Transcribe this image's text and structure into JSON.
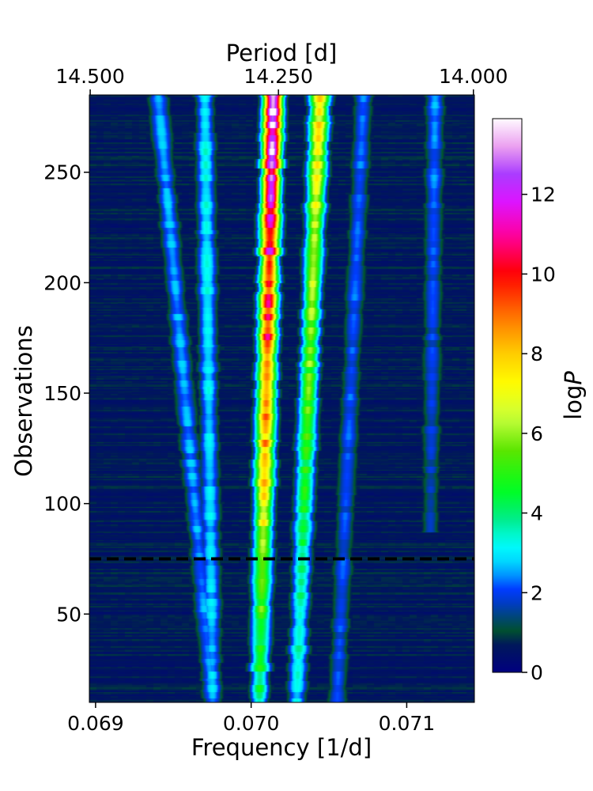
{
  "chart_data": {
    "type": "heatmap",
    "title": "",
    "xlabel": "Frequency [1/d]",
    "ylabel": "Observations",
    "x2label": "Period [d]",
    "colorbar_label_prefix": "log",
    "colorbar_label_var": "P",
    "xlim": [
      0.06896,
      0.071435
    ],
    "ylim": [
      10,
      285
    ],
    "x_ticks": [
      0.069,
      0.07,
      0.071
    ],
    "x_tick_labels": [
      "0.069",
      "0.070",
      "0.071"
    ],
    "y_ticks": [
      50,
      100,
      150,
      200,
      250
    ],
    "y_tick_labels": [
      "50",
      "100",
      "150",
      "200",
      "250"
    ],
    "period_ticks": [
      14.5,
      14.25,
      14.0
    ],
    "period_tick_labels": [
      "14.500",
      "14.250",
      "14.000"
    ],
    "colorbar_ticks": [
      0,
      2,
      4,
      6,
      8,
      10,
      12
    ],
    "colorbar_tick_labels": [
      "0",
      "2",
      "4",
      "6",
      "8",
      "10",
      "12"
    ],
    "colorbar_range": [
      0,
      13.9
    ],
    "colormap": "gist_ncar",
    "reference_line": {
      "y": 75,
      "style": "dashed",
      "color": "#000000"
    },
    "ridges": [
      {
        "freq_start": 0.07005,
        "freq_end": 0.07014,
        "obs_start": 10,
        "obs_end": 285,
        "peak_logP_start": 4.0,
        "peak_logP_end": 13.5
      },
      {
        "freq_start": 0.07029,
        "freq_end": 0.07044,
        "obs_start": 10,
        "obs_end": 285,
        "peak_logP_start": 3.0,
        "peak_logP_end": 7.6
      },
      {
        "freq_start": 0.06975,
        "freq_end": 0.0697,
        "obs_start": 10,
        "obs_end": 285,
        "peak_logP_start": 2.7,
        "peak_logP_end": 3.2
      },
      {
        "freq_start": 0.06975,
        "freq_end": 0.0694,
        "obs_start": 10,
        "obs_end": 285,
        "peak_logP_start": 2.4,
        "peak_logP_end": 2.6
      },
      {
        "freq_start": 0.07055,
        "freq_end": 0.07072,
        "obs_start": 10,
        "obs_end": 285,
        "peak_logP_start": 2.0,
        "peak_logP_end": 2.2
      },
      {
        "freq_start": 0.07115,
        "freq_end": 0.07118,
        "obs_start": 90,
        "obs_end": 285,
        "peak_logP_start": 1.6,
        "peak_logP_end": 2.4
      }
    ]
  }
}
